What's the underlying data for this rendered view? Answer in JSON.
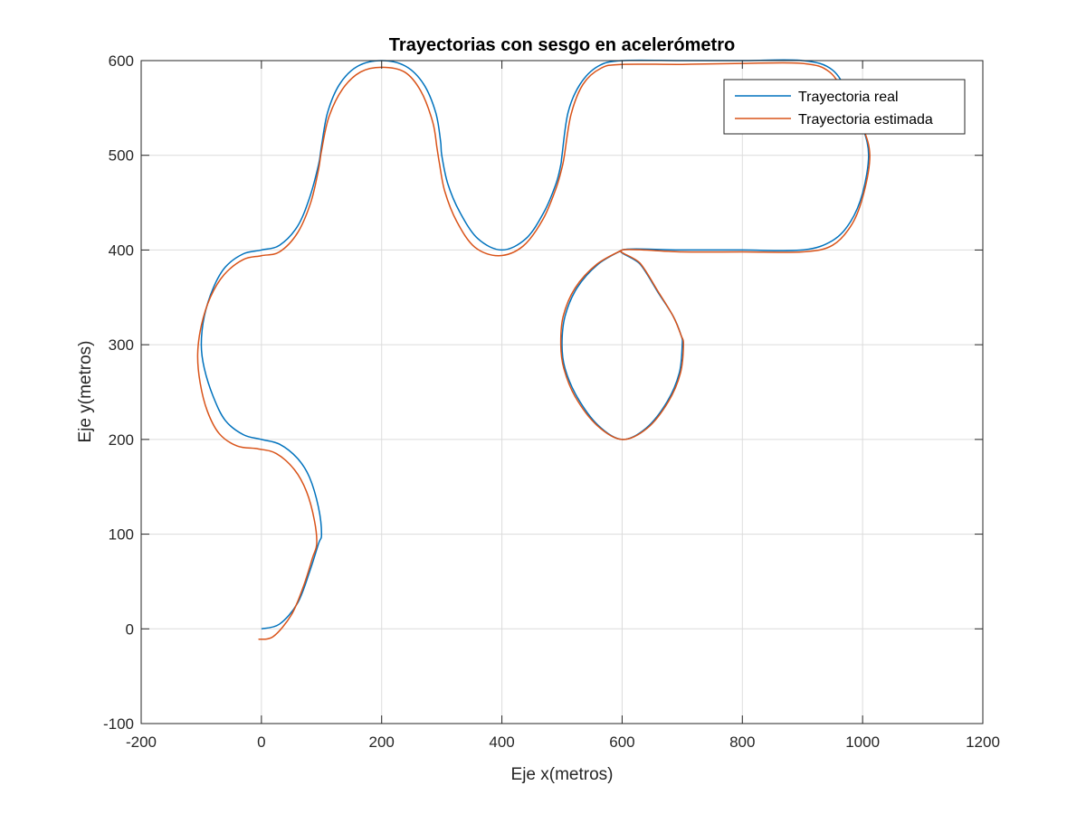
{
  "chart_data": {
    "type": "line",
    "title": "Trayectorias con sesgo en acelerómetro",
    "xlabel": "Eje x(metros)",
    "ylabel": "Eje y(metros)",
    "xlim": [
      -200,
      1200
    ],
    "ylim": [
      -100,
      600
    ],
    "xticks": [
      -200,
      0,
      200,
      400,
      600,
      800,
      1000,
      1200
    ],
    "yticks": [
      -100,
      0,
      100,
      200,
      300,
      400,
      500,
      600
    ],
    "xtick_labels": [
      "-200",
      "0",
      "200",
      "400",
      "600",
      "800",
      "1000",
      "1200"
    ],
    "ytick_labels": [
      "-100",
      "0",
      "100",
      "200",
      "300",
      "400",
      "500",
      "600"
    ],
    "grid": true,
    "legend_position": "top-right",
    "colors": {
      "real": "#0072BD",
      "estimada": "#D95319"
    },
    "series": [
      {
        "name": "Trayectoria real",
        "color": "#0072BD",
        "x": [
          0,
          30,
          60,
          80,
          95,
          100,
          95,
          80,
          60,
          30,
          0,
          -30,
          -60,
          -80,
          -95,
          -100,
          -95,
          -80,
          -60,
          -30,
          0,
          30,
          60,
          80,
          95,
          100,
          110,
          130,
          160,
          200,
          240,
          270,
          290,
          298,
          300,
          310,
          330,
          360,
          400,
          440,
          470,
          490,
          498,
          500,
          510,
          530,
          560,
          600,
          700,
          800,
          900,
          950,
          980,
          1000,
          1010,
          1000,
          980,
          950,
          900,
          800,
          700,
          600,
          630,
          660,
          685,
          698,
          700,
          695,
          675,
          640,
          600,
          560,
          525,
          505,
          500,
          505,
          525,
          560,
          600
        ],
        "y": [
          0,
          5,
          27,
          60,
          90,
          100,
          128,
          160,
          180,
          195,
          200,
          205,
          220,
          245,
          275,
          300,
          330,
          360,
          382,
          396,
          400,
          405,
          425,
          455,
          490,
          510,
          545,
          575,
          594,
          600,
          594,
          575,
          545,
          515,
          500,
          470,
          440,
          412,
          400,
          412,
          440,
          470,
          490,
          500,
          545,
          575,
          594,
          600,
          600,
          600,
          600,
          590,
          560,
          530,
          500,
          460,
          430,
          410,
          400,
          400,
          400,
          400,
          385,
          355,
          330,
          310,
          300,
          270,
          240,
          212,
          200,
          215,
          245,
          275,
          300,
          330,
          360,
          385,
          400
        ]
      },
      {
        "name": "Trayectoria estimada",
        "color": "#D95319",
        "x": [
          -5,
          20,
          50,
          70,
          85,
          92,
          88,
          75,
          55,
          25,
          -5,
          -40,
          -70,
          -90,
          -102,
          -106,
          -100,
          -85,
          -62,
          -30,
          0,
          30,
          60,
          82,
          95,
          100,
          112,
          135,
          165,
          200,
          238,
          265,
          285,
          292,
          296,
          305,
          325,
          355,
          395,
          435,
          468,
          490,
          500,
          504,
          515,
          535,
          565,
          600,
          700,
          800,
          900,
          945,
          975,
          1000,
          1012,
          1002,
          983,
          950,
          900,
          800,
          700,
          600,
          630,
          660,
          685,
          698,
          702,
          697,
          677,
          642,
          600,
          558,
          522,
          503,
          498,
          502,
          522,
          558,
          600
        ],
        "y": [
          -11,
          -8,
          15,
          45,
          75,
          90,
          115,
          145,
          168,
          185,
          190,
          193,
          206,
          230,
          260,
          290,
          320,
          350,
          374,
          390,
          394,
          398,
          418,
          450,
          485,
          505,
          540,
          570,
          588,
          593,
          588,
          568,
          535,
          508,
          492,
          462,
          430,
          403,
          394,
          404,
          432,
          465,
          487,
          500,
          543,
          575,
          592,
          596,
          596,
          597,
          597,
          588,
          560,
          530,
          500,
          460,
          428,
          405,
          398,
          398,
          398,
          400,
          386,
          356,
          330,
          310,
          300,
          270,
          240,
          212,
          200,
          215,
          245,
          275,
          300,
          330,
          360,
          385,
          400
        ]
      }
    ]
  }
}
